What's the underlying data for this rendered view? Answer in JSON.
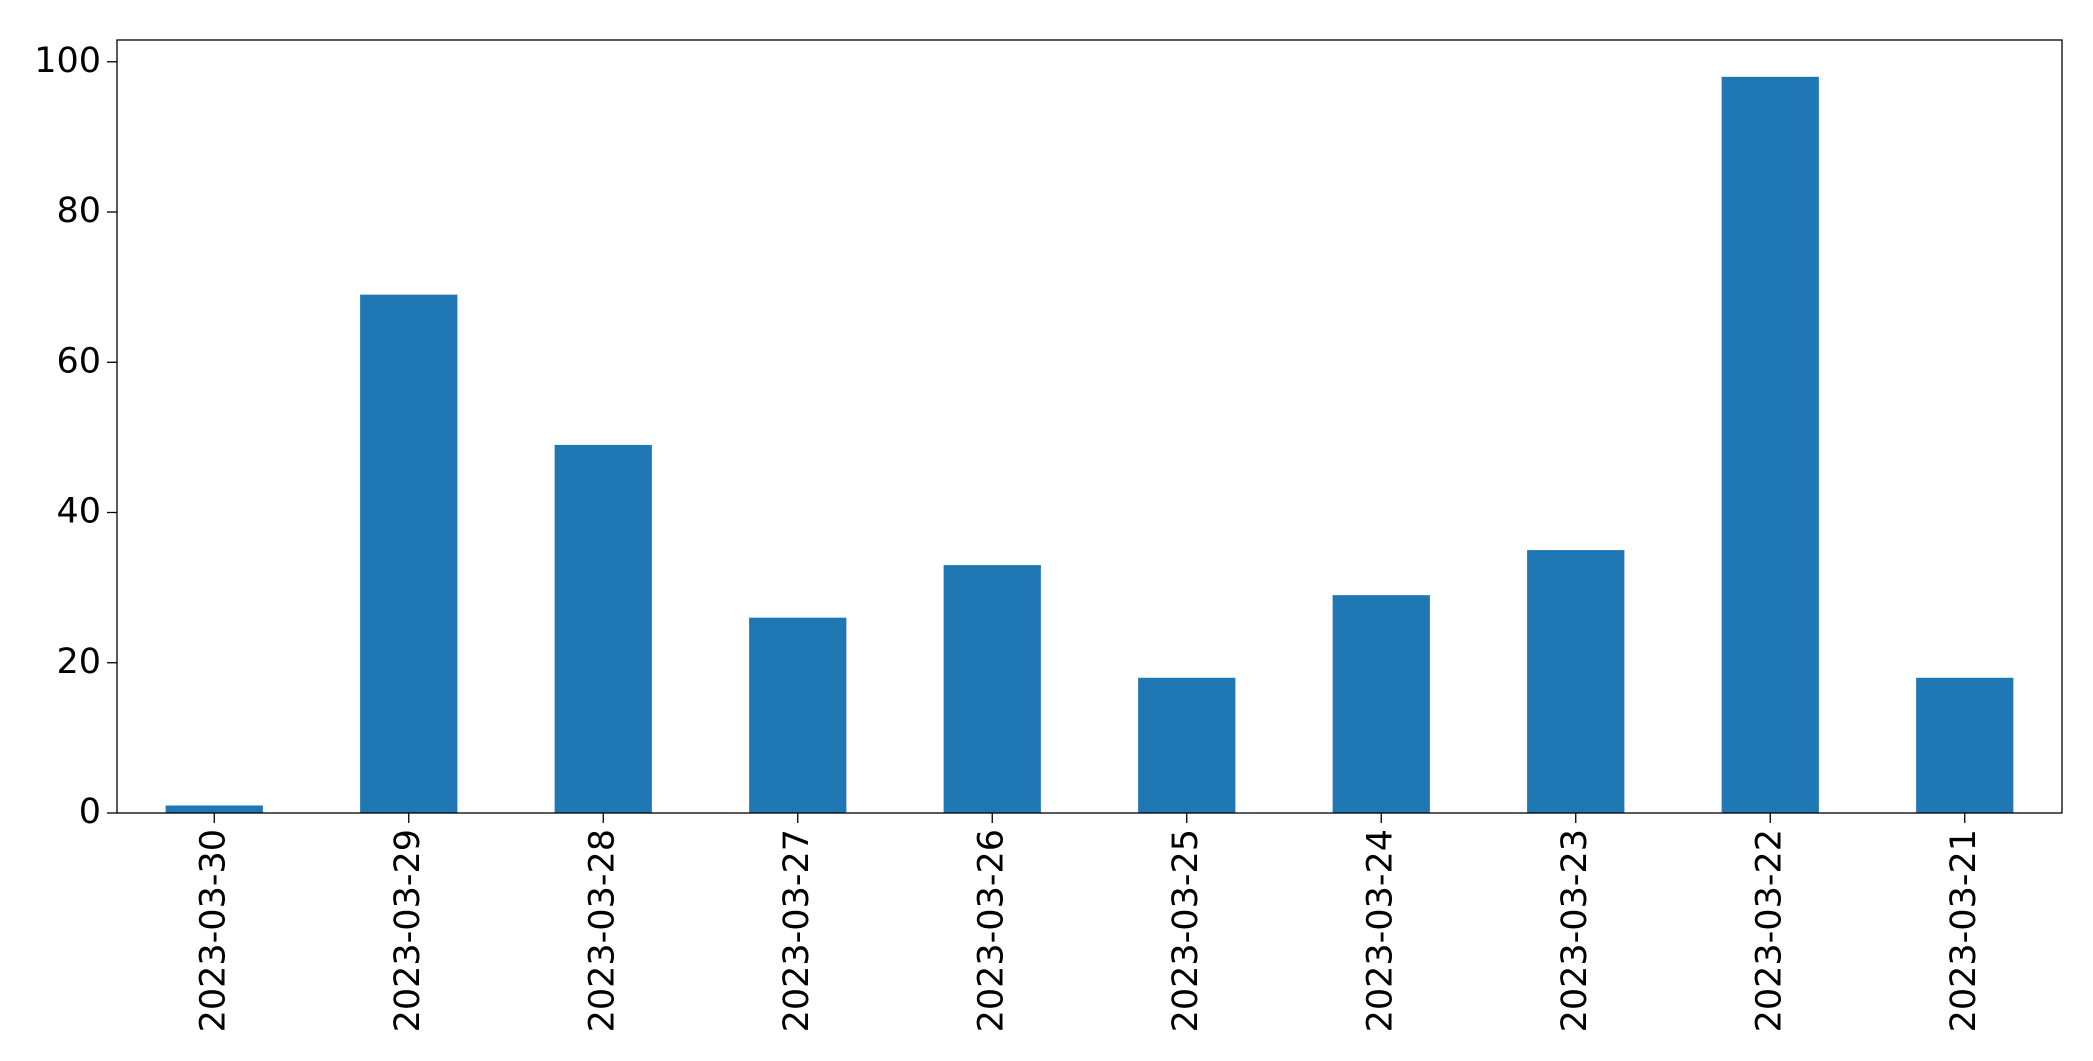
{
  "chart_data": {
    "type": "bar",
    "categories": [
      "2023-03-30",
      "2023-03-29",
      "2023-03-28",
      "2023-03-27",
      "2023-03-26",
      "2023-03-25",
      "2023-03-24",
      "2023-03-23",
      "2023-03-22",
      "2023-03-21"
    ],
    "values": [
      1,
      69,
      49,
      26,
      33,
      18,
      29,
      35,
      98,
      18
    ],
    "color": "#1f77b4",
    "ylim": [
      0,
      102.9
    ],
    "yticks": [
      0,
      20,
      40,
      60,
      80,
      100
    ],
    "grid": false
  }
}
